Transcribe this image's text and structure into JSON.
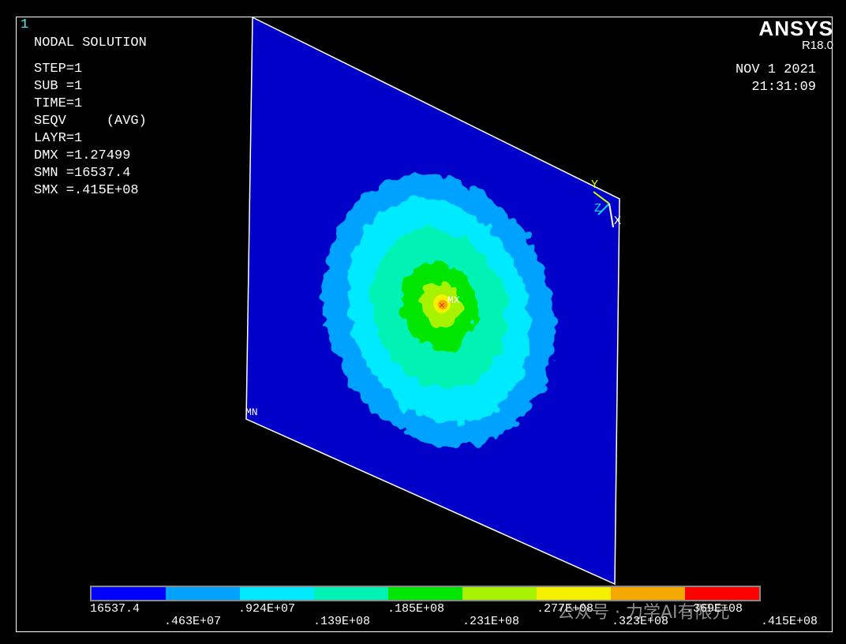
{
  "window_number": "1",
  "title": "NODAL SOLUTION",
  "info_lines": [
    "STEP=1",
    "SUB =1",
    "TIME=1",
    "SEQV     (AVG)",
    "LAYR=1",
    "DMX =1.27499",
    "SMN =16537.4",
    "SMX =.415E+08"
  ],
  "brand": {
    "name": "ANSYS",
    "version": "R18.0"
  },
  "date": "NOV  1 2021",
  "time": "21:31:09",
  "markers": {
    "max": "MX",
    "min": "MN"
  },
  "axes": {
    "x": "X",
    "y": "Y",
    "z": "Z"
  },
  "colors": {
    "background": "#000000",
    "plate": "#0000c8",
    "bands": [
      "#0000ff",
      "#00a2ff",
      "#00eaff",
      "#00f2b4",
      "#00e600",
      "#a6f200",
      "#f5f000",
      "#f5a800",
      "#ff0000"
    ]
  },
  "legend": {
    "top_labels": [
      "16537.4",
      ".924E+07",
      ".185E+08",
      ".277E+08",
      ".369E+08"
    ],
    "bottom_labels": [
      ".463E+07",
      ".139E+08",
      ".231E+08",
      ".323E+08",
      ".415E+08"
    ]
  },
  "watermark": "公众号 · 力学AI有限元"
}
